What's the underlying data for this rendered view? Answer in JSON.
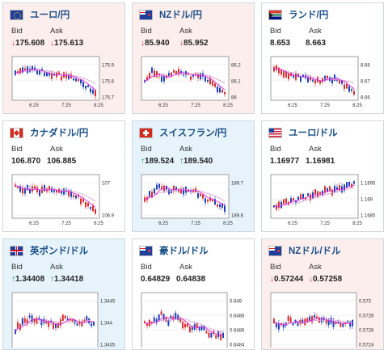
{
  "cards": [
    {
      "pair": "ユーロ/円",
      "bid_label": "Bid",
      "ask_label": "Ask",
      "bid": "175.608",
      "ask": "175.613",
      "direction": "down",
      "bg": "down",
      "flag": "eu",
      "yticks": [
        "175.9",
        "175.8",
        "175.7"
      ],
      "xticks": [
        "6:25",
        "7:25",
        "8:25"
      ]
    },
    {
      "pair": "NZドル/円",
      "bid_label": "Bid",
      "ask_label": "Ask",
      "bid": "85.940",
      "ask": "85.952",
      "direction": "down",
      "bg": "down",
      "flag": "nz",
      "yticks": [
        "86.2",
        "86.1",
        "86"
      ],
      "xticks": [
        "6:25",
        "7:25",
        "8:25"
      ]
    },
    {
      "pair": "ランド/円",
      "bid_label": "Bid",
      "ask_label": "Ask",
      "bid": "8.653",
      "ask": "8.663",
      "direction": "none",
      "bg": "plain",
      "flag": "za",
      "yticks": [
        "8.68",
        "8.67",
        "8.66"
      ],
      "xticks": [
        "6:25",
        "7:25",
        "8:25"
      ]
    },
    {
      "pair": "カナダドル/円",
      "bid_label": "Bid",
      "ask_label": "Ask",
      "bid": "106.870",
      "ask": "106.885",
      "direction": "none",
      "bg": "plain",
      "flag": "ca",
      "yticks": [
        "107",
        "106.9"
      ],
      "xticks": [
        "6:25",
        "7:25",
        "8:25"
      ]
    },
    {
      "pair": "スイスフラン/円",
      "bid_label": "Bid",
      "ask_label": "Ask",
      "bid": "189.524",
      "ask": "189.540",
      "direction": "up",
      "bg": "up",
      "flag": "ch",
      "yticks": [
        "189.7",
        "189.6"
      ],
      "xticks": [
        "6:25",
        "7:25",
        "8:25"
      ]
    },
    {
      "pair": "ユーロ/ドル",
      "bid_label": "Bid",
      "ask_label": "Ask",
      "bid": "1.16977",
      "ask": "1.16981",
      "direction": "none",
      "bg": "plain",
      "flag": "us",
      "yticks": [
        "1.1695",
        "1.169",
        "1.1685"
      ],
      "xticks": [
        "6:25",
        "7:25",
        "8:25"
      ]
    },
    {
      "pair": "英ポンド/ドル",
      "bid_label": "Bid",
      "ask_label": "Ask",
      "bid": "1.34408",
      "ask": "1.34418",
      "direction": "up",
      "bg": "up",
      "flag": "gb",
      "yticks": [
        "1.3445",
        "1.344",
        "1.3435"
      ],
      "xticks": []
    },
    {
      "pair": "豪ドル/ドル",
      "bid_label": "Bid",
      "ask_label": "Ask",
      "bid": "0.64829",
      "ask": "0.64838",
      "direction": "none",
      "bg": "plain",
      "flag": "au",
      "yticks": [
        "0.649",
        "0.6488",
        "0.6486",
        "0.6484"
      ],
      "xticks": []
    },
    {
      "pair": "NZドル/ドル",
      "bid_label": "Bid",
      "ask_label": "Ask",
      "bid": "0.57244",
      "ask": "0.57258",
      "direction": "down",
      "bg": "down",
      "flag": "nz",
      "yticks": [
        "0.573",
        "0.5728",
        "0.5726",
        "0.5724"
      ],
      "xticks": []
    }
  ],
  "arrows": {
    "down": "↓",
    "up": "↑"
  },
  "colors": {
    "candle_up": "#d62b2b",
    "candle_down": "#1c3fb8",
    "ma_short": "#e22de0",
    "ma_long": "#d9a6d8",
    "pair_text": "#1a4f86",
    "arrow_down": "#d9332e",
    "arrow_up": "#1e8a3f"
  }
}
